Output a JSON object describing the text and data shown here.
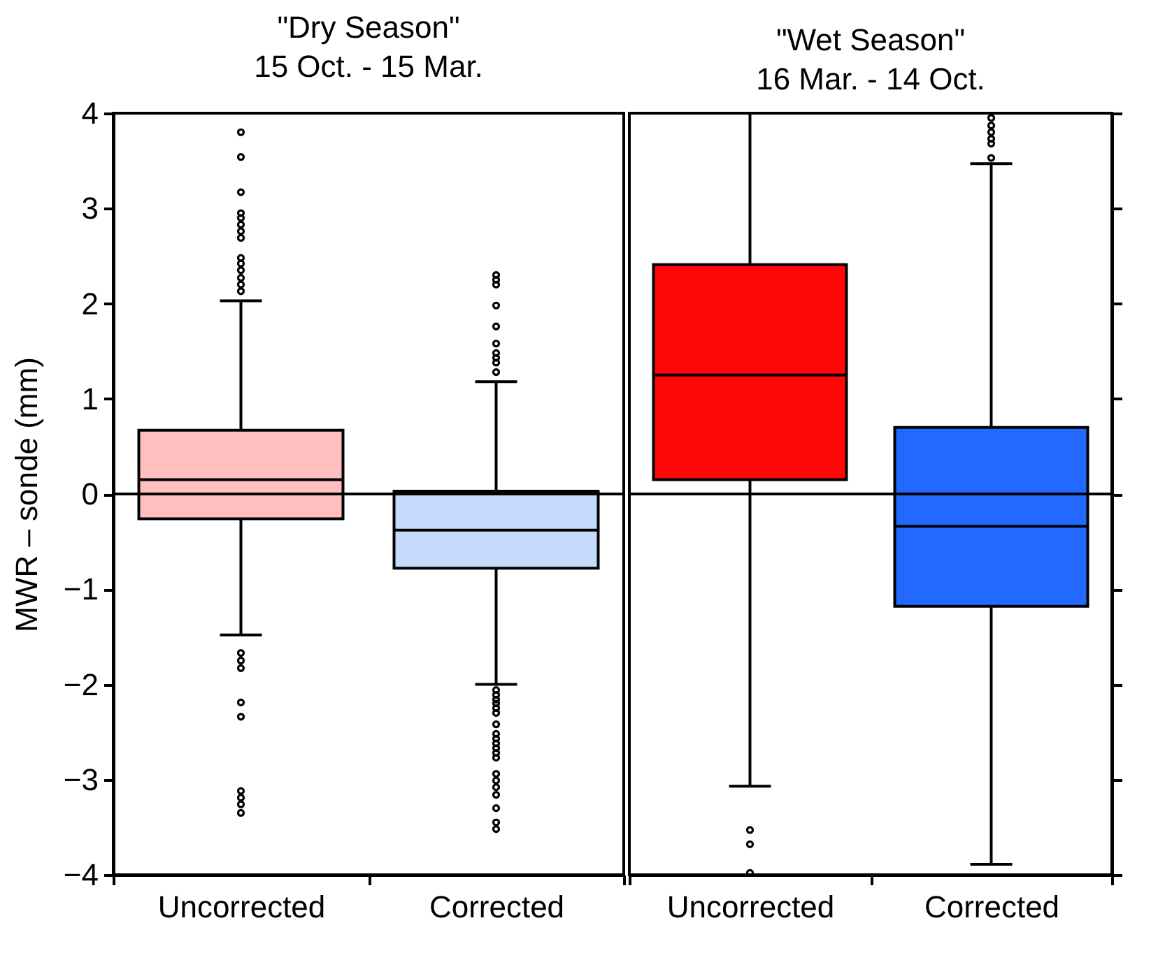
{
  "chart_data": [
    {
      "type": "box",
      "title": "\"Dry Season\"",
      "subtitle": "15 Oct. - 15 Mar.",
      "ylabel": "MWR – sonde (mm)",
      "categories": [
        "Uncorrected",
        "Corrected"
      ],
      "colors": [
        "#ffbfbf",
        "#c6dafc"
      ],
      "ylim": [
        -4,
        4
      ],
      "yticks": [
        -4,
        -3,
        -2,
        -1,
        0,
        1,
        2,
        3,
        4
      ],
      "grid": false,
      "boxes": [
        {
          "low": -1.48,
          "q1": -0.26,
          "median": 0.15,
          "q3": 0.67,
          "high": 2.03,
          "outliers": [
            3.8,
            3.54,
            3.17,
            2.95,
            2.9,
            2.83,
            2.76,
            2.69,
            2.48,
            2.42,
            2.35,
            2.27,
            2.2,
            2.13,
            -1.67,
            -1.75,
            -1.83,
            -2.19,
            -2.34,
            -3.12,
            -3.19,
            -3.26,
            -3.35
          ]
        },
        {
          "low": -2.0,
          "q1": -0.78,
          "median": -0.38,
          "q3": 0.03,
          "high": 1.18,
          "outliers": [
            2.3,
            2.25,
            2.2,
            1.98,
            1.76,
            1.58,
            1.48,
            1.43,
            1.38,
            1.28,
            -2.06,
            -2.11,
            -2.16,
            -2.2,
            -2.25,
            -2.3,
            -2.42,
            -2.52,
            -2.57,
            -2.62,
            -2.67,
            -2.72,
            -2.77,
            -2.94,
            -3.01,
            -3.08,
            -3.16,
            -3.3,
            -3.45,
            -3.52
          ]
        }
      ],
      "ref_lines": [
        {
          "axis": "y",
          "value": 0
        }
      ]
    },
    {
      "type": "box",
      "title": "\"Wet Season\"",
      "subtitle": "16 Mar. - 14 Oct.",
      "categories": [
        "Uncorrected",
        "Corrected"
      ],
      "colors": [
        "#ff0707",
        "#2269ff"
      ],
      "ylim": [
        -4,
        4
      ],
      "yticks": [
        -4,
        -3,
        -2,
        -1,
        0,
        1,
        2,
        3,
        4
      ],
      "grid": false,
      "tick_labels": "x",
      "boxes": [
        {
          "low": -3.07,
          "q1": 0.15,
          "median": 1.25,
          "q3": 2.41,
          "high": 4,
          "outliers": [
            -3.53,
            -3.68,
            -3.98
          ]
        },
        {
          "low": -3.89,
          "q1": -1.18,
          "median": -0.34,
          "q3": 0.7,
          "high": 3.47,
          "outliers": [
            3.95,
            3.87,
            3.8,
            3.73,
            3.68,
            3.53
          ]
        }
      ],
      "ref_lines": [
        {
          "axis": "y",
          "value": 0
        }
      ]
    }
  ]
}
